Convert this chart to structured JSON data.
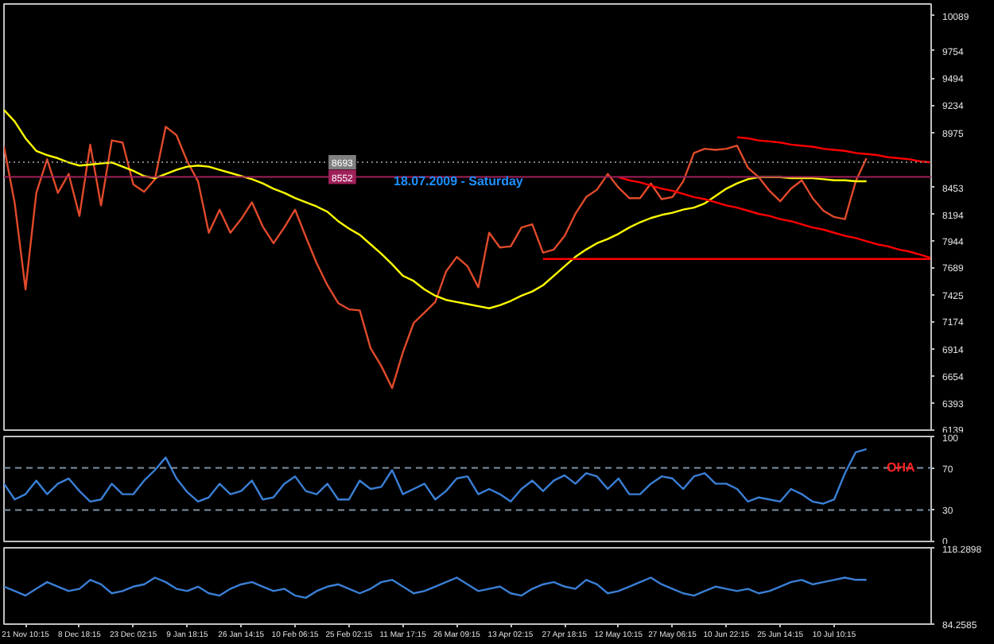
{
  "chart_data": [
    {
      "type": "line",
      "annotations": [
        "18.07.2009 - Saturday"
      ],
      "ylim": [
        6139,
        10200
      ],
      "categories": [
        null,
        null,
        null,
        null,
        null,
        null,
        null,
        null,
        null,
        null,
        null,
        null,
        null,
        null,
        null,
        null,
        null,
        null,
        null,
        null,
        null,
        null,
        null,
        null,
        null,
        null,
        null,
        null,
        null,
        null,
        null,
        null,
        null,
        null,
        null,
        null,
        null,
        null,
        null,
        null,
        null,
        null,
        null,
        null,
        null,
        null,
        null,
        null,
        null,
        null,
        null,
        null,
        null,
        null,
        null,
        null,
        null,
        null,
        null,
        null,
        null,
        null,
        null,
        null,
        null,
        null,
        null,
        null,
        null,
        null,
        null,
        null,
        null,
        null,
        null,
        null,
        null,
        null,
        null,
        null,
        null,
        null,
        null,
        null,
        null,
        null,
        null
      ],
      "yticks": [
        10089,
        9754,
        9494,
        9234,
        8975,
        8453,
        8194,
        7944,
        7689,
        7425,
        7174,
        6914,
        6654,
        6393,
        6139
      ],
      "tick_labels": "y",
      "ref_lines": [
        {
          "axis": "y",
          "value": 8693,
          "label": "8693",
          "color": "#808080",
          "line_style": "dotted"
        },
        {
          "axis": "y",
          "value": 8552,
          "label": "8552",
          "color": "#a0205a",
          "line_style": "solid"
        }
      ],
      "series": [
        {
          "color": "#e04a2a",
          "values": [
            8840,
            8300,
            7480,
            8400,
            8720,
            8400,
            8580,
            8180,
            8860,
            8280,
            8900,
            8880,
            8480,
            8410,
            8530,
            9030,
            8950,
            8700,
            8510,
            8020,
            8240,
            8020,
            8150,
            8310,
            8080,
            7920,
            8070,
            8240,
            7980,
            7730,
            7520,
            7350,
            7290,
            7280,
            6920,
            6750,
            6540,
            6880,
            7160,
            7260,
            7360,
            7650,
            7790,
            7700,
            7500,
            8020,
            7880,
            7890,
            8070,
            8100,
            7830,
            7860,
            7990,
            8200,
            8360,
            8430,
            8580,
            8450,
            8350,
            8350,
            8490,
            8340,
            8360,
            8510,
            8780,
            8820,
            8810,
            8820,
            8850,
            8640,
            8550,
            8420,
            8320,
            8440,
            8520,
            8350,
            8230,
            8170,
            8150,
            8510,
            8730,
            null,
            null,
            null,
            null,
            null,
            null
          ]
        },
        {
          "color": "#ffff00",
          "values": [
            9190,
            9080,
            8920,
            8800,
            8760,
            8730,
            8690,
            8660,
            8670,
            8680,
            8690,
            8650,
            8610,
            8560,
            8540,
            8580,
            8620,
            8650,
            8660,
            8650,
            8620,
            8590,
            8560,
            8530,
            8490,
            8440,
            8400,
            8350,
            8310,
            8270,
            8220,
            8130,
            8060,
            8000,
            7910,
            7820,
            7720,
            7610,
            7560,
            7480,
            7420,
            7380,
            7360,
            7340,
            7320,
            7300,
            7330,
            7370,
            7420,
            7460,
            7520,
            7610,
            7700,
            7790,
            7860,
            7920,
            7960,
            8010,
            8070,
            8120,
            8160,
            8190,
            8210,
            8240,
            8260,
            8300,
            8370,
            8440,
            8490,
            8530,
            8550,
            8550,
            8550,
            8540,
            8540,
            8540,
            8530,
            8520,
            8520,
            8510,
            8510,
            null,
            null,
            null,
            null,
            null,
            null
          ]
        },
        {
          "color": "#ff0000",
          "values": [
            null,
            null,
            null,
            null,
            null,
            null,
            null,
            null,
            null,
            null,
            null,
            null,
            null,
            null,
            null,
            null,
            null,
            null,
            null,
            null,
            null,
            null,
            null,
            null,
            null,
            null,
            null,
            null,
            null,
            null,
            null,
            null,
            null,
            null,
            null,
            null,
            null,
            null,
            null,
            null,
            null,
            null,
            null,
            null,
            null,
            null,
            null,
            null,
            null,
            null,
            null,
            null,
            null,
            null,
            null,
            null,
            null,
            null,
            null,
            null,
            null,
            null,
            null,
            null,
            null,
            null,
            null,
            null,
            8930,
            8920,
            8900,
            8890,
            8880,
            8860,
            8850,
            8840,
            8820,
            8810,
            8800,
            8780,
            8770,
            8760,
            8740,
            8730,
            8720,
            8700,
            8690
          ]
        },
        {
          "color": "#ff0000",
          "values": [
            null,
            null,
            null,
            null,
            null,
            null,
            null,
            null,
            null,
            null,
            null,
            null,
            null,
            null,
            null,
            null,
            null,
            null,
            null,
            null,
            null,
            null,
            null,
            null,
            null,
            null,
            null,
            null,
            null,
            null,
            null,
            null,
            null,
            null,
            null,
            null,
            null,
            null,
            null,
            null,
            null,
            null,
            null,
            null,
            null,
            null,
            null,
            null,
            null,
            null,
            null,
            null,
            null,
            null,
            null,
            null,
            null,
            8550,
            8520,
            8500,
            8470,
            8440,
            8420,
            8390,
            8360,
            8340,
            8310,
            8280,
            8260,
            8230,
            8200,
            8180,
            8150,
            8130,
            8100,
            8070,
            8050,
            8020,
            7990,
            7970,
            7940,
            7910,
            7890,
            7860,
            7840,
            7810,
            7780
          ]
        },
        {
          "color": "#ff0000",
          "values": [
            null,
            null,
            null,
            null,
            null,
            null,
            null,
            null,
            null,
            null,
            null,
            null,
            null,
            null,
            null,
            null,
            null,
            null,
            null,
            null,
            null,
            null,
            null,
            null,
            null,
            null,
            null,
            null,
            null,
            null,
            null,
            null,
            null,
            null,
            null,
            null,
            null,
            null,
            null,
            null,
            null,
            null,
            null,
            null,
            null,
            null,
            null,
            null,
            null,
            null,
            7770,
            7770,
            7770,
            7770,
            7770,
            7770,
            7770,
            7770,
            7770,
            7770,
            7770,
            7770,
            7770,
            7770,
            7770,
            7770,
            7770,
            7770,
            7770,
            7770,
            7770,
            7770,
            7770,
            7770,
            7770,
            7770,
            7770,
            7770,
            7770,
            7770,
            7770,
            7770,
            7770,
            7770,
            7770,
            7770,
            7770
          ]
        }
      ]
    },
    {
      "type": "line",
      "annotations": [
        "OHA"
      ],
      "ylim": [
        0,
        100
      ],
      "yticks": [
        100,
        70,
        30,
        0
      ],
      "tick_labels": "y",
      "categories": [
        null,
        null,
        null,
        null,
        null,
        null,
        null,
        null,
        null,
        null,
        null,
        null,
        null,
        null,
        null,
        null,
        null,
        null,
        null,
        null,
        null,
        null,
        null,
        null,
        null,
        null,
        null,
        null,
        null,
        null,
        null,
        null,
        null,
        null,
        null,
        null,
        null,
        null,
        null,
        null,
        null,
        null,
        null,
        null,
        null,
        null,
        null,
        null,
        null,
        null,
        null,
        null,
        null,
        null,
        null,
        null,
        null,
        null,
        null,
        null,
        null,
        null,
        null,
        null,
        null,
        null,
        null,
        null,
        null,
        null,
        null,
        null,
        null,
        null,
        null,
        null,
        null,
        null,
        null,
        null,
        null,
        null,
        null,
        null,
        null,
        null,
        null
      ],
      "ref_lines": [
        {
          "axis": "y",
          "value": 70,
          "color": "#8090a0",
          "line_style": "dashed"
        },
        {
          "axis": "y",
          "value": 30,
          "color": "#8090a0",
          "line_style": "dashed"
        }
      ],
      "series": [
        {
          "color": "#3a7fd5",
          "values": [
            55,
            40,
            45,
            58,
            45,
            55,
            60,
            48,
            38,
            40,
            55,
            45,
            45,
            58,
            68,
            80,
            60,
            47,
            38,
            42,
            55,
            45,
            48,
            58,
            40,
            42,
            55,
            62,
            48,
            45,
            55,
            40,
            40,
            58,
            50,
            52,
            68,
            45,
            50,
            55,
            40,
            48,
            60,
            62,
            45,
            50,
            45,
            38,
            50,
            58,
            48,
            58,
            63,
            55,
            65,
            62,
            50,
            60,
            45,
            45,
            55,
            62,
            60,
            50,
            62,
            65,
            55,
            55,
            50,
            38,
            42,
            40,
            38,
            50,
            45,
            38,
            36,
            40,
            65,
            85,
            88,
            null,
            null,
            null,
            null,
            null,
            null
          ]
        }
      ]
    },
    {
      "type": "line",
      "ylim": [
        84.2585,
        118.2898
      ],
      "yticks": [
        118.2898,
        84.2585
      ],
      "categories": [
        null,
        null,
        "21 Nov 10:15",
        null,
        null,
        null,
        null,
        "8 Dec 18:15",
        null,
        null,
        null,
        null,
        "23 Dec 02:15",
        null,
        null,
        null,
        null,
        "9 Jan 18:15",
        null,
        null,
        null,
        null,
        "26 Jan 14:15",
        null,
        null,
        null,
        null,
        "10 Feb 06:15",
        null,
        null,
        null,
        null,
        "25 Feb 02:15",
        null,
        null,
        null,
        null,
        "11 Mar 17:15",
        null,
        null,
        null,
        null,
        "26 Mar 09:15",
        null,
        null,
        null,
        null,
        "13 Apr 02:15",
        null,
        null,
        null,
        null,
        "27 Apr 18:15",
        null,
        null,
        null,
        null,
        "12 May 10:15",
        null,
        null,
        null,
        null,
        "27 May 06:15",
        null,
        null,
        null,
        null,
        "10 Jun 22:15",
        null,
        null,
        null,
        null,
        "25 Jun 14:15",
        null,
        null,
        null,
        null,
        "10 Jul 10:15",
        null,
        null,
        null,
        null,
        null,
        null,
        null,
        null,
        null
      ],
      "series": [
        {
          "color": "#3a7fd5",
          "values": [
            101,
            99,
            97,
            100,
            103,
            101,
            99,
            100,
            104,
            102,
            98,
            99,
            101,
            102,
            105,
            103,
            100,
            99,
            101,
            98,
            97,
            100,
            102,
            103,
            101,
            99,
            100,
            97,
            96,
            99,
            101,
            102,
            100,
            98,
            100,
            103,
            104,
            101,
            98,
            99,
            101,
            103,
            105,
            102,
            99,
            100,
            101,
            98,
            97,
            100,
            102,
            103,
            101,
            100,
            104,
            102,
            98,
            99,
            101,
            103,
            105,
            102,
            100,
            98,
            97,
            99,
            101,
            100,
            99,
            100,
            98,
            99,
            101,
            103,
            104,
            102,
            103,
            104,
            105,
            104,
            104,
            null,
            null,
            null,
            null,
            null,
            null
          ]
        }
      ]
    }
  ]
}
